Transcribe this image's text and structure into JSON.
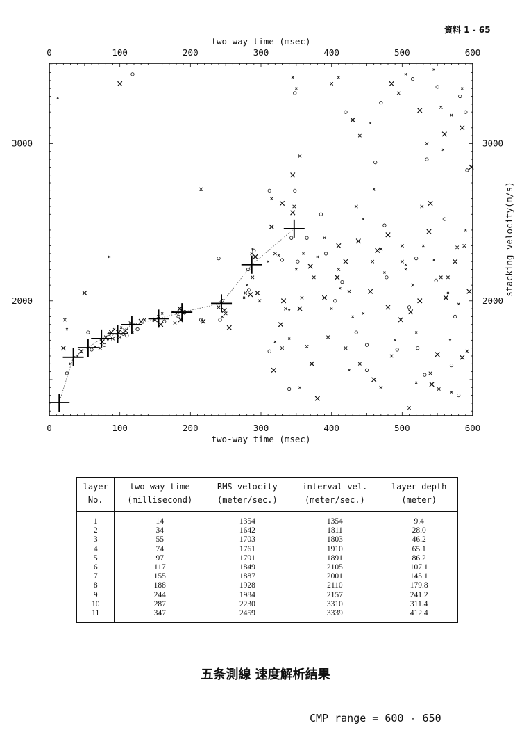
{
  "page_ref": "資料 1 - 65",
  "caption": "五条測線  速度解析結果",
  "cmp_range": "CMP range = 600 - 650",
  "chart_data": {
    "type": "scatter",
    "xlabel_top": "two-way time (msec)",
    "xlabel_bottom": "two-way time (msec)",
    "ylabel_right": "stacking velocity(m/s)",
    "xlim": [
      0,
      600
    ],
    "ylim": [
      1270,
      3510
    ],
    "x_ticks": [
      "0",
      "100",
      "200",
      "300",
      "400",
      "500",
      "600"
    ],
    "y_ticks_left": [
      "3000",
      "2000"
    ],
    "y_ticks_right": [
      "3000",
      "2000"
    ],
    "picks": {
      "name": "layer picks",
      "x": [
        14,
        34,
        55,
        74,
        97,
        117,
        155,
        188,
        244,
        287,
        347
      ],
      "y": [
        1354,
        1642,
        1703,
        1761,
        1791,
        1849,
        1887,
        1928,
        1984,
        2230,
        2459
      ]
    },
    "semblance_points": [
      [
        85,
        1790
      ],
      [
        88,
        1800
      ],
      [
        90,
        1760
      ],
      [
        92,
        1820
      ],
      [
        95,
        1780
      ],
      [
        98,
        1800
      ],
      [
        100,
        1770
      ],
      [
        102,
        1830
      ],
      [
        105,
        1790
      ],
      [
        108,
        1810
      ],
      [
        80,
        1770
      ],
      [
        83,
        1750
      ],
      [
        78,
        1720
      ],
      [
        75,
        1740
      ],
      [
        72,
        1700
      ],
      [
        65,
        1710
      ],
      [
        60,
        1690
      ],
      [
        45,
        1680
      ],
      [
        40,
        1650
      ],
      [
        30,
        1600
      ],
      [
        25,
        1540
      ],
      [
        20,
        1700
      ],
      [
        22,
        1880
      ],
      [
        25,
        1820
      ],
      [
        55,
        1800
      ],
      [
        50,
        2050
      ],
      [
        115,
        1860
      ],
      [
        120,
        1850
      ],
      [
        125,
        1820
      ],
      [
        130,
        1870
      ],
      [
        135,
        1880
      ],
      [
        118,
        1800
      ],
      [
        110,
        1780
      ],
      [
        150,
        1880
      ],
      [
        155,
        1900
      ],
      [
        160,
        1920
      ],
      [
        163,
        1870
      ],
      [
        158,
        1850
      ],
      [
        148,
        1880
      ],
      [
        180,
        1920
      ],
      [
        183,
        1900
      ],
      [
        185,
        1950
      ],
      [
        188,
        1940
      ],
      [
        190,
        1920
      ],
      [
        192,
        1930
      ],
      [
        186,
        1880
      ],
      [
        178,
        1860
      ],
      [
        175,
        1930
      ],
      [
        215,
        1880
      ],
      [
        218,
        1870
      ],
      [
        240,
        1960
      ],
      [
        243,
        1990
      ],
      [
        245,
        2000
      ],
      [
        248,
        1940
      ],
      [
        250,
        1920
      ],
      [
        245,
        1900
      ],
      [
        242,
        1880
      ],
      [
        255,
        1830
      ],
      [
        278,
        2050
      ],
      [
        280,
        2100
      ],
      [
        283,
        2070
      ],
      [
        285,
        2040
      ],
      [
        287,
        2300
      ],
      [
        288,
        2330
      ],
      [
        290,
        2320
      ],
      [
        292,
        2280
      ],
      [
        288,
        2150
      ],
      [
        276,
        2020
      ],
      [
        282,
        2200
      ],
      [
        295,
        2050
      ],
      [
        298,
        2000
      ],
      [
        310,
        2250
      ],
      [
        312,
        2700
      ],
      [
        315,
        2470
      ],
      [
        320,
        2300
      ],
      [
        325,
        2290
      ],
      [
        330,
        2260
      ],
      [
        332,
        2000
      ],
      [
        335,
        1950
      ],
      [
        340,
        1940
      ],
      [
        343,
        2400
      ],
      [
        345,
        2560
      ],
      [
        347,
        2600
      ],
      [
        350,
        2200
      ],
      [
        352,
        2250
      ],
      [
        355,
        1950
      ],
      [
        358,
        2020
      ],
      [
        360,
        2300
      ],
      [
        348,
        2700
      ],
      [
        345,
        2800
      ],
      [
        345,
        3420
      ],
      [
        350,
        3350
      ],
      [
        348,
        3320
      ],
      [
        328,
        1850
      ],
      [
        330,
        1700
      ],
      [
        320,
        1740
      ],
      [
        312,
        1680
      ],
      [
        318,
        1560
      ],
      [
        315,
        2650
      ],
      [
        340,
        1760
      ],
      [
        365,
        2400
      ],
      [
        370,
        2220
      ],
      [
        375,
        2150
      ],
      [
        380,
        2280
      ],
      [
        385,
        2550
      ],
      [
        390,
        2020
      ],
      [
        395,
        1770
      ],
      [
        400,
        1950
      ],
      [
        405,
        2000
      ],
      [
        408,
        2150
      ],
      [
        410,
        2200
      ],
      [
        412,
        2080
      ],
      [
        415,
        2120
      ],
      [
        420,
        2250
      ],
      [
        425,
        2060
      ],
      [
        430,
        1900
      ],
      [
        435,
        1800
      ],
      [
        438,
        2380
      ],
      [
        440,
        1600
      ],
      [
        445,
        1920
      ],
      [
        450,
        1720
      ],
      [
        455,
        2060
      ],
      [
        458,
        2250
      ],
      [
        460,
        2710
      ],
      [
        462,
        2880
      ],
      [
        465,
        2320
      ],
      [
        470,
        2330
      ],
      [
        475,
        2180
      ],
      [
        478,
        2150
      ],
      [
        480,
        1960
      ],
      [
        485,
        1650
      ],
      [
        490,
        1750
      ],
      [
        493,
        1690
      ],
      [
        498,
        1880
      ],
      [
        500,
        2250
      ],
      [
        505,
        2200
      ],
      [
        510,
        1960
      ],
      [
        512,
        1930
      ],
      [
        515,
        2100
      ],
      [
        520,
        1800
      ],
      [
        522,
        1700
      ],
      [
        525,
        2000
      ],
      [
        528,
        2600
      ],
      [
        530,
        2350
      ],
      [
        535,
        2900
      ],
      [
        538,
        2440
      ],
      [
        540,
        1540
      ],
      [
        545,
        2260
      ],
      [
        548,
        2130
      ],
      [
        550,
        1660
      ],
      [
        555,
        3230
      ],
      [
        558,
        2960
      ],
      [
        560,
        2520
      ],
      [
        562,
        2020
      ],
      [
        565,
        2150
      ],
      [
        568,
        1750
      ],
      [
        570,
        1590
      ],
      [
        575,
        2250
      ],
      [
        578,
        2340
      ],
      [
        580,
        1980
      ],
      [
        582,
        3300
      ],
      [
        585,
        3100
      ],
      [
        588,
        2350
      ],
      [
        590,
        2450
      ],
      [
        592,
        2830
      ],
      [
        595,
        2060
      ],
      [
        400,
        3380
      ],
      [
        410,
        3420
      ],
      [
        420,
        3200
      ],
      [
        430,
        3150
      ],
      [
        440,
        3050
      ],
      [
        455,
        3130
      ],
      [
        470,
        3260
      ],
      [
        485,
        3380
      ],
      [
        495,
        3320
      ],
      [
        505,
        3440
      ],
      [
        515,
        3410
      ],
      [
        525,
        3210
      ],
      [
        535,
        3000
      ],
      [
        545,
        3470
      ],
      [
        550,
        3360
      ],
      [
        560,
        3060
      ],
      [
        570,
        3180
      ],
      [
        585,
        3350
      ],
      [
        590,
        3200
      ],
      [
        598,
        2850
      ],
      [
        435,
        2600
      ],
      [
        445,
        2520
      ],
      [
        475,
        2480
      ],
      [
        480,
        2420
      ],
      [
        500,
        2350
      ],
      [
        505,
        2230
      ],
      [
        520,
        2270
      ],
      [
        540,
        2620
      ],
      [
        555,
        2150
      ],
      [
        565,
        2050
      ],
      [
        575,
        1900
      ],
      [
        585,
        1640
      ],
      [
        592,
        1680
      ],
      [
        390,
        2400
      ],
      [
        392,
        2300
      ],
      [
        410,
        2350
      ],
      [
        420,
        1700
      ],
      [
        425,
        1560
      ],
      [
        450,
        1560
      ],
      [
        460,
        1500
      ],
      [
        470,
        1450
      ],
      [
        520,
        1480
      ],
      [
        532,
        1530
      ],
      [
        542,
        1470
      ],
      [
        552,
        1440
      ],
      [
        570,
        1420
      ],
      [
        580,
        1400
      ],
      [
        372,
        1600
      ],
      [
        365,
        1710
      ],
      [
        355,
        1450
      ],
      [
        340,
        1440
      ],
      [
        380,
        1380
      ],
      [
        510,
        1320
      ],
      [
        12,
        3290
      ],
      [
        118,
        3440
      ],
      [
        100,
        3380
      ],
      [
        215,
        2710
      ],
      [
        85,
        2280
      ],
      [
        240,
        2270
      ],
      [
        330,
        2620
      ],
      [
        355,
        2920
      ]
    ]
  },
  "table": {
    "headers": [
      [
        "layer",
        "No."
      ],
      [
        "two-way time",
        "(millisecond)"
      ],
      [
        "RMS velocity",
        "(meter/sec.)"
      ],
      [
        "interval vel.",
        "(meter/sec.)"
      ],
      [
        "layer depth",
        "(meter)"
      ]
    ],
    "rows": [
      [
        "1",
        "14",
        "1354",
        "1354",
        "9.4"
      ],
      [
        "2",
        "34",
        "1642",
        "1811",
        "28.0"
      ],
      [
        "3",
        "55",
        "1703",
        "1803",
        "46.2"
      ],
      [
        "4",
        "74",
        "1761",
        "1910",
        "65.1"
      ],
      [
        "5",
        "97",
        "1791",
        "1891",
        "86.2"
      ],
      [
        "6",
        "117",
        "1849",
        "2105",
        "107.1"
      ],
      [
        "7",
        "155",
        "1887",
        "2001",
        "145.1"
      ],
      [
        "8",
        "188",
        "1928",
        "2110",
        "179.8"
      ],
      [
        "9",
        "244",
        "1984",
        "2157",
        "241.2"
      ],
      [
        "10",
        "287",
        "2230",
        "3310",
        "311.4"
      ],
      [
        "11",
        "347",
        "2459",
        "3339",
        "412.4"
      ]
    ]
  }
}
